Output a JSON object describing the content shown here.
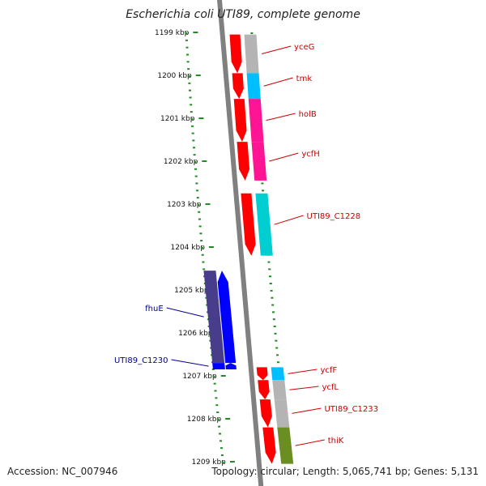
{
  "title": "Escherichia coli UTI89, complete genome",
  "footer": {
    "accession": "Accession: NC_007946",
    "summary": "Topology: circular; Length: 5,065,741 bp; Genes: 5,131"
  },
  "ticks": [
    "1199 kbp",
    "1200 kbp",
    "1201 kbp",
    "1202 kbp",
    "1203 kbp",
    "1204 kbp",
    "1205 kbp",
    "1206 kbp",
    "1207 kbp",
    "1208 kbp",
    "1209 kbp"
  ],
  "colors": {
    "forward_label": "#cc0000",
    "reverse_label": "#00008b",
    "cds": "#ff0000",
    "cds_reverse": "#0000ff",
    "backbone": "#808080",
    "scale": "#228b22"
  },
  "genes": [
    {
      "label": "yceG",
      "strand": "forward",
      "start_kbp": 1199.05,
      "end_kbp": 1199.95,
      "color": "#b4b4b4"
    },
    {
      "label": "tmk",
      "strand": "forward",
      "start_kbp": 1199.95,
      "end_kbp": 1200.55,
      "color": "#00bfff"
    },
    {
      "label": "holB",
      "strand": "forward",
      "start_kbp": 1200.55,
      "end_kbp": 1201.55,
      "color": "#ff1493"
    },
    {
      "label": "ycfH",
      "strand": "forward",
      "start_kbp": 1201.55,
      "end_kbp": 1202.45,
      "color": "#ff1493"
    },
    {
      "label": "UTI89_C1228",
      "strand": "forward",
      "start_kbp": 1202.75,
      "end_kbp": 1204.2,
      "color": "#00ced1"
    },
    {
      "label": "fhuE",
      "strand": "reverse",
      "start_kbp": 1204.55,
      "end_kbp": 1206.7,
      "color": "#483d8b"
    },
    {
      "label": "UTI89_C1230",
      "strand": "reverse",
      "start_kbp": 1206.7,
      "end_kbp": 1206.85,
      "color": "#0000ff"
    },
    {
      "label": "ycfF",
      "strand": "forward",
      "start_kbp": 1206.8,
      "end_kbp": 1207.1,
      "color": "#00bfff"
    },
    {
      "label": "ycfL",
      "strand": "forward",
      "start_kbp": 1207.1,
      "end_kbp": 1207.55,
      "color": "#b4b4b4"
    },
    {
      "label": "UTI89_C1233",
      "strand": "forward",
      "start_kbp": 1207.55,
      "end_kbp": 1208.2,
      "color": "#b4b4b4"
    },
    {
      "label": "thiK",
      "strand": "forward",
      "start_kbp": 1208.2,
      "end_kbp": 1209.05,
      "color": "#6b8e23"
    }
  ]
}
